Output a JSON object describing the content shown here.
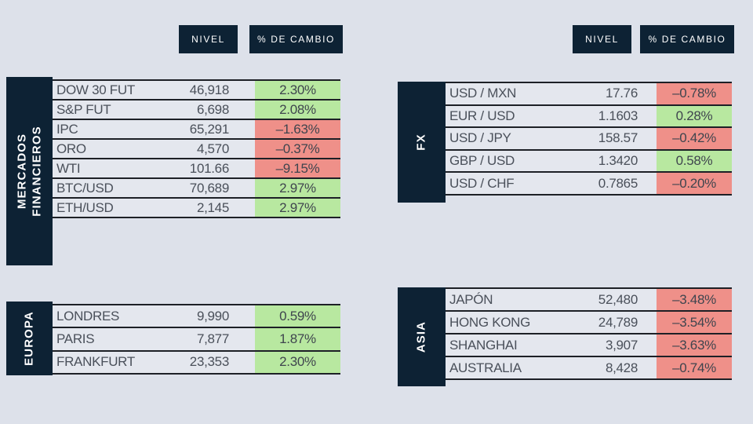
{
  "colors": {
    "navy": "#0d2234",
    "positive_green": "#b8e8a0",
    "negative_red": "#ef9089",
    "background": "#dde1ea"
  },
  "chart_data": [
    {
      "type": "table",
      "name": "mercados-financieros",
      "title": "MERCADOS FINANCIEROS",
      "title_lines": [
        "MERCADOS",
        "FINANCIEROS"
      ],
      "columns": [
        "NIVEL",
        "% DE CAMBIO"
      ],
      "rows": [
        {
          "label": "DOW 30 FUT",
          "level": "46,918",
          "level_value": 46918,
          "change": "2.30%",
          "change_value": 2.3,
          "dir": "up"
        },
        {
          "label": "S&P FUT",
          "level": "6,698",
          "level_value": 6698,
          "change": "2.08%",
          "change_value": 2.08,
          "dir": "up"
        },
        {
          "label": "IPC",
          "level": "65,291",
          "level_value": 65291,
          "change": "–1.63%",
          "change_value": -1.63,
          "dir": "down"
        },
        {
          "label": "ORO",
          "level": "4,570",
          "level_value": 4570,
          "change": "–0.37%",
          "change_value": -0.37,
          "dir": "down"
        },
        {
          "label": "WTI",
          "level": "101.66",
          "level_value": 101.66,
          "change": "–9.15%",
          "change_value": -9.15,
          "dir": "down"
        },
        {
          "label": "BTC/USD",
          "level": "70,689",
          "level_value": 70689,
          "change": "2.97%",
          "change_value": 2.97,
          "dir": "up"
        },
        {
          "label": "ETH/USD",
          "level": "2,145",
          "level_value": 2145,
          "change": "2.97%",
          "change_value": 2.97,
          "dir": "up"
        }
      ]
    },
    {
      "type": "table",
      "name": "fx",
      "title": "FX",
      "title_lines": [
        "FX"
      ],
      "columns": [
        "NIVEL",
        "% DE CAMBIO"
      ],
      "rows": [
        {
          "label": "USD / MXN",
          "level": "17.76",
          "level_value": 17.76,
          "change": "–0.78%",
          "change_value": -0.78,
          "dir": "down"
        },
        {
          "label": "EUR / USD",
          "level": "1.1603",
          "level_value": 1.1603,
          "change": "0.28%",
          "change_value": 0.28,
          "dir": "up"
        },
        {
          "label": "USD / JPY",
          "level": "158.57",
          "level_value": 158.57,
          "change": "–0.42%",
          "change_value": -0.42,
          "dir": "down"
        },
        {
          "label": "GBP / USD",
          "level": "1.3420",
          "level_value": 1.342,
          "change": "0.58%",
          "change_value": 0.58,
          "dir": "up"
        },
        {
          "label": "USD / CHF",
          "level": "0.7865",
          "level_value": 0.7865,
          "change": "–0.20%",
          "change_value": -0.2,
          "dir": "down"
        }
      ]
    },
    {
      "type": "table",
      "name": "europa",
      "title": "EUROPA",
      "title_lines": [
        "EUROPA"
      ],
      "columns": [
        "NIVEL",
        "% DE CAMBIO"
      ],
      "rows": [
        {
          "label": "LONDRES",
          "level": "9,990",
          "level_value": 9990,
          "change": "0.59%",
          "change_value": 0.59,
          "dir": "up"
        },
        {
          "label": "PARIS",
          "level": "7,877",
          "level_value": 7877,
          "change": "1.87%",
          "change_value": 1.87,
          "dir": "up"
        },
        {
          "label": "FRANKFURT",
          "level": "23,353",
          "level_value": 23353,
          "change": "2.30%",
          "change_value": 2.3,
          "dir": "up"
        }
      ]
    },
    {
      "type": "table",
      "name": "asia",
      "title": "ASIA",
      "title_lines": [
        "ASIA"
      ],
      "columns": [
        "NIVEL",
        "% DE CAMBIO"
      ],
      "rows": [
        {
          "label": "JAPÓN",
          "level": "52,480",
          "level_value": 52480,
          "change": "–3.48%",
          "change_value": -3.48,
          "dir": "down"
        },
        {
          "label": "HONG KONG",
          "level": "24,789",
          "level_value": 24789,
          "change": "–3.54%",
          "change_value": -3.54,
          "dir": "down"
        },
        {
          "label": "SHANGHAI",
          "level": "3,907",
          "level_value": 3907,
          "change": "–3.63%",
          "change_value": -3.63,
          "dir": "down"
        },
        {
          "label": "AUSTRALIA",
          "level": "8,428",
          "level_value": 8428,
          "change": "–0.74%",
          "change_value": -0.74,
          "dir": "down"
        }
      ]
    }
  ]
}
